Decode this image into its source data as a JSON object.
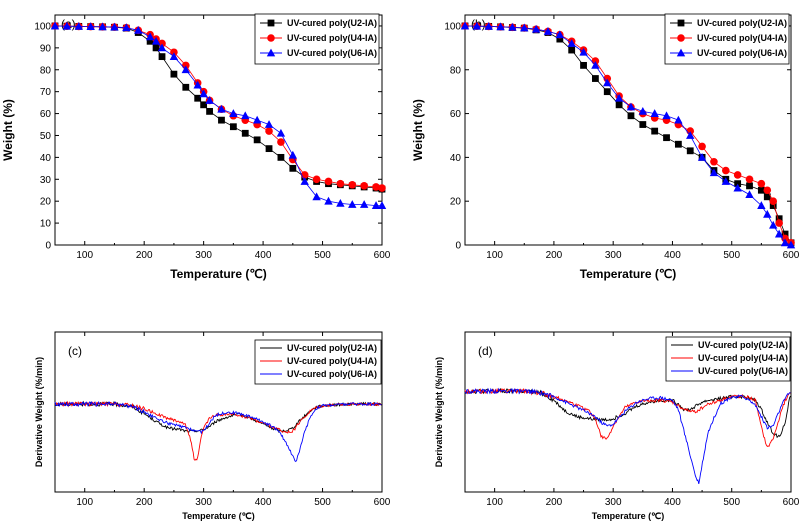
{
  "chart_data": [
    {
      "id": "a",
      "panel_label": "(a)",
      "type": "line",
      "title": "",
      "xlabel": "Temperature (℃)",
      "ylabel": "Weight (%)",
      "xlim": [
        50,
        600
      ],
      "ylim": [
        0,
        105
      ],
      "xticks": [
        100,
        200,
        300,
        400,
        500,
        600
      ],
      "yticks": [
        0,
        10,
        20,
        30,
        40,
        50,
        60,
        70,
        80,
        90,
        100
      ],
      "legend_position": "top-right",
      "x": [
        50,
        70,
        90,
        110,
        130,
        150,
        170,
        190,
        210,
        220,
        230,
        250,
        270,
        290,
        300,
        310,
        330,
        350,
        370,
        390,
        410,
        430,
        450,
        470,
        490,
        510,
        530,
        550,
        570,
        590,
        600
      ],
      "series": [
        {
          "name": "UV-cured poly(U2-IA)",
          "marker": "square",
          "color": "#000000",
          "values": [
            100,
            99.9,
            99.8,
            99.7,
            99.6,
            99.4,
            99,
            97,
            93,
            90,
            86,
            78,
            72,
            67,
            64,
            61,
            57,
            54,
            51,
            48,
            44,
            40,
            35,
            31,
            29,
            28,
            27.5,
            27,
            26.5,
            26,
            25.5
          ]
        },
        {
          "name": "UV-cured poly(U4-IA)",
          "marker": "circle",
          "color": "#ff0000",
          "values": [
            100,
            99.9,
            99.8,
            99.7,
            99.6,
            99.5,
            99.2,
            98,
            96,
            94,
            92,
            88,
            82,
            74,
            70,
            66,
            62,
            59,
            57,
            55,
            52,
            47,
            39,
            32,
            30,
            29,
            28,
            27.5,
            27,
            26.5,
            26
          ]
        },
        {
          "name": "UV-cured poly(U6-IA)",
          "marker": "triangle",
          "color": "#0000ff",
          "values": [
            100,
            99.9,
            99.8,
            99.7,
            99.6,
            99.5,
            99.2,
            98,
            95,
            93,
            90,
            86,
            80,
            73,
            69,
            66,
            62,
            60,
            59,
            57,
            55,
            51,
            41,
            29,
            22,
            20,
            19,
            18.5,
            18.5,
            18,
            18
          ]
        }
      ]
    },
    {
      "id": "b",
      "panel_label": "(b)",
      "type": "line",
      "title": "",
      "xlabel": "Temperature (℃)",
      "ylabel": "Weight (%)",
      "xlim": [
        50,
        600
      ],
      "ylim": [
        0,
        105
      ],
      "xticks": [
        100,
        200,
        300,
        400,
        500,
        600
      ],
      "yticks": [
        0,
        20,
        40,
        60,
        80,
        100
      ],
      "legend_position": "top-right",
      "x": [
        50,
        70,
        90,
        110,
        130,
        150,
        170,
        190,
        210,
        230,
        250,
        270,
        290,
        310,
        330,
        350,
        370,
        390,
        410,
        430,
        450,
        470,
        490,
        510,
        530,
        550,
        560,
        570,
        580,
        590,
        600
      ],
      "series": [
        {
          "name": "UV-cured poly(U2-IA)",
          "marker": "square",
          "color": "#000000",
          "values": [
            100,
            99.9,
            99.8,
            99.6,
            99.3,
            99,
            98.2,
            97,
            94,
            89,
            82,
            76,
            70,
            64,
            59,
            55,
            52,
            49,
            46,
            43,
            40,
            34,
            30,
            28,
            27,
            25,
            22,
            18,
            12,
            5,
            1
          ]
        },
        {
          "name": "UV-cured poly(U4-IA)",
          "marker": "circle",
          "color": "#ff0000",
          "values": [
            100,
            99.9,
            99.8,
            99.6,
            99.4,
            99.1,
            98.5,
            97.5,
            96,
            93,
            89,
            84,
            76,
            68,
            63,
            60,
            58,
            57,
            55,
            52,
            45,
            38,
            34,
            32,
            30,
            28,
            25,
            20,
            10,
            3,
            1
          ]
        },
        {
          "name": "UV-cured poly(U6-IA)",
          "marker": "triangle",
          "color": "#0000ff",
          "values": [
            100,
            99.9,
            99.8,
            99.6,
            99.4,
            99.1,
            98.5,
            97.5,
            96,
            92,
            88,
            82,
            74,
            67,
            63,
            61,
            60,
            59,
            57,
            50,
            40,
            33,
            29,
            26,
            23,
            18,
            14,
            9,
            5,
            1,
            0
          ]
        }
      ]
    },
    {
      "id": "c",
      "panel_label": "(c)",
      "type": "line",
      "title": "",
      "xlabel": "Temperature (℃)",
      "ylabel": "Derivative Weight (%/min)",
      "xlim": [
        50,
        600
      ],
      "ylim": [
        -1.2,
        0.3
      ],
      "xticks": [
        100,
        200,
        300,
        400,
        500,
        600
      ],
      "legend_position": "top-right",
      "x": [
        50,
        100,
        150,
        180,
        200,
        220,
        240,
        260,
        270,
        280,
        285,
        290,
        295,
        300,
        310,
        320,
        340,
        360,
        380,
        400,
        420,
        430,
        440,
        450,
        455,
        460,
        470,
        480,
        490,
        500,
        520,
        550,
        600
      ],
      "series": [
        {
          "name": "UV-cured poly(U2-IA)",
          "color": "#000000",
          "values": [
            0,
            0,
            0,
            -0.03,
            -0.12,
            -0.22,
            -0.3,
            -0.32,
            -0.34,
            -0.34,
            -0.34,
            -0.33,
            -0.33,
            -0.32,
            -0.28,
            -0.22,
            -0.16,
            -0.13,
            -0.18,
            -0.25,
            -0.32,
            -0.34,
            -0.33,
            -0.3,
            -0.26,
            -0.22,
            -0.15,
            -0.08,
            -0.04,
            -0.02,
            -0.01,
            0,
            0
          ]
        },
        {
          "name": "UV-cured poly(U4-IA)",
          "color": "#ff0000",
          "values": [
            0,
            0,
            0,
            -0.02,
            -0.06,
            -0.12,
            -0.18,
            -0.22,
            -0.26,
            -0.5,
            -0.72,
            -0.68,
            -0.45,
            -0.3,
            -0.18,
            -0.14,
            -0.13,
            -0.14,
            -0.18,
            -0.24,
            -0.3,
            -0.33,
            -0.36,
            -0.34,
            -0.3,
            -0.24,
            -0.16,
            -0.08,
            -0.04,
            -0.02,
            -0.01,
            0,
            0
          ]
        },
        {
          "name": "UV-cured poly(U6-IA)",
          "color": "#0000ff",
          "values": [
            0,
            0,
            0,
            -0.03,
            -0.1,
            -0.18,
            -0.24,
            -0.28,
            -0.3,
            -0.32,
            -0.33,
            -0.34,
            -0.35,
            -0.33,
            -0.24,
            -0.14,
            -0.1,
            -0.12,
            -0.16,
            -0.22,
            -0.3,
            -0.38,
            -0.5,
            -0.65,
            -0.72,
            -0.62,
            -0.35,
            -0.15,
            -0.05,
            -0.02,
            -0.01,
            0,
            0
          ]
        }
      ]
    },
    {
      "id": "d",
      "panel_label": "(d)",
      "type": "line",
      "title": "",
      "xlabel": "Temperature (℃)",
      "ylabel": "Derivative Weight (%/min)",
      "xlim": [
        50,
        600
      ],
      "ylim": [
        -1.2,
        0.3
      ],
      "xticks": [
        100,
        200,
        300,
        400,
        500,
        600
      ],
      "legend_position": "top-right",
      "x": [
        50,
        100,
        150,
        180,
        200,
        220,
        240,
        260,
        270,
        280,
        290,
        300,
        320,
        340,
        360,
        380,
        400,
        410,
        420,
        430,
        440,
        445,
        450,
        460,
        480,
        500,
        520,
        540,
        550,
        560,
        570,
        580,
        590,
        600
      ],
      "series": [
        {
          "name": "UV-cured poly(U2-IA)",
          "color": "#000000",
          "values": [
            0,
            0,
            0,
            -0.02,
            -0.1,
            -0.22,
            -0.28,
            -0.3,
            -0.31,
            -0.31,
            -0.31,
            -0.3,
            -0.24,
            -0.16,
            -0.12,
            -0.1,
            -0.1,
            -0.14,
            -0.2,
            -0.2,
            -0.16,
            -0.14,
            -0.12,
            -0.1,
            -0.08,
            -0.06,
            -0.06,
            -0.1,
            -0.2,
            -0.34,
            -0.46,
            -0.5,
            -0.35,
            0
          ]
        },
        {
          "name": "UV-cured poly(U4-IA)",
          "color": "#ff0000",
          "values": [
            0,
            0,
            0,
            -0.02,
            -0.06,
            -0.1,
            -0.16,
            -0.22,
            -0.3,
            -0.5,
            -0.52,
            -0.38,
            -0.18,
            -0.12,
            -0.1,
            -0.1,
            -0.12,
            -0.16,
            -0.2,
            -0.22,
            -0.22,
            -0.2,
            -0.18,
            -0.14,
            -0.1,
            -0.06,
            -0.05,
            -0.1,
            -0.4,
            -0.62,
            -0.52,
            -0.3,
            -0.1,
            0
          ]
        },
        {
          "name": "UV-cured poly(U6-IA)",
          "color": "#0000ff",
          "values": [
            0,
            0,
            0,
            -0.02,
            -0.06,
            -0.12,
            -0.18,
            -0.24,
            -0.28,
            -0.34,
            -0.38,
            -0.36,
            -0.22,
            -0.12,
            -0.08,
            -0.07,
            -0.1,
            -0.2,
            -0.45,
            -0.7,
            -0.95,
            -1.0,
            -0.8,
            -0.45,
            -0.14,
            -0.06,
            -0.06,
            -0.15,
            -0.28,
            -0.4,
            -0.38,
            -0.22,
            -0.08,
            0
          ]
        }
      ]
    }
  ]
}
